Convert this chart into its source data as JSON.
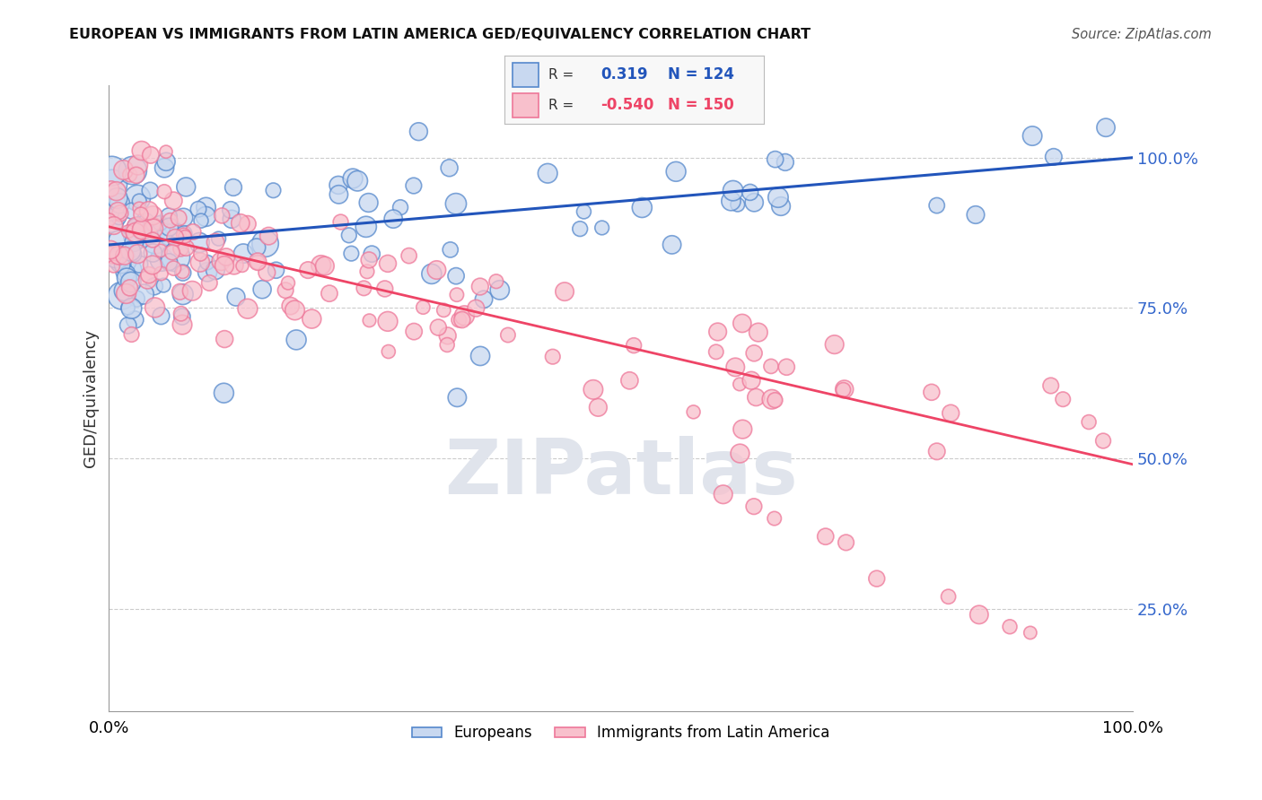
{
  "title": "EUROPEAN VS IMMIGRANTS FROM LATIN AMERICA GED/EQUIVALENCY CORRELATION CHART",
  "source": "Source: ZipAtlas.com",
  "ylabel": "GED/Equivalency",
  "xlim": [
    0.0,
    1.0
  ],
  "ylim": [
    0.08,
    1.12
  ],
  "yticks": [
    0.25,
    0.5,
    0.75,
    1.0
  ],
  "ytick_labels": [
    "25.0%",
    "50.0%",
    "75.0%",
    "100.0%"
  ],
  "xticks": [
    0.0,
    1.0
  ],
  "xtick_labels": [
    "0.0%",
    "100.0%"
  ],
  "blue_face": "#c8d8f0",
  "blue_edge": "#5588cc",
  "pink_face": "#f8c0cc",
  "pink_edge": "#ee7799",
  "blue_line_color": "#2255bb",
  "pink_line_color": "#ee4466",
  "ytick_color": "#3366cc",
  "legend_R_blue": "0.319",
  "legend_N_blue": "124",
  "legend_R_pink": "-0.540",
  "legend_N_pink": "150",
  "blue_trend_x": [
    0.0,
    1.0
  ],
  "blue_trend_y": [
    0.855,
    1.0
  ],
  "pink_trend_x": [
    0.0,
    1.0
  ],
  "pink_trend_y": [
    0.885,
    0.49
  ],
  "background_color": "#ffffff",
  "grid_color": "#cccccc",
  "watermark_text": "ZIPatlas",
  "watermark_color": "#e0e4ec",
  "dot_size": 200
}
